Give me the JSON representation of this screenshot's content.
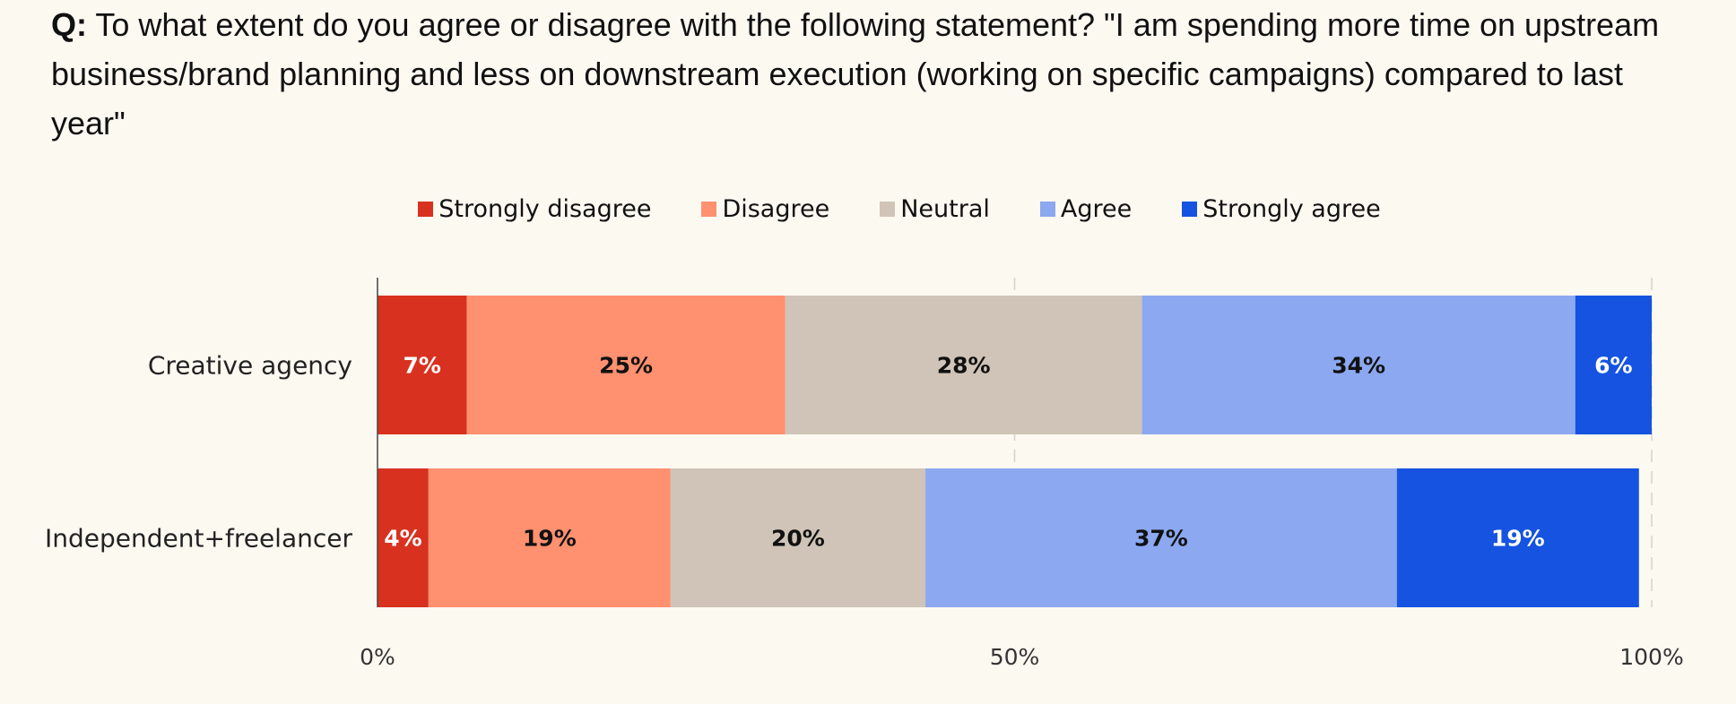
{
  "question": {
    "prefix": "Q:",
    "text": " To what extent do you agree or disagree with the following statement? \"I am spending more time on upstream business/brand planning and less on downstream execution (working on specific campaigns) compared to last year\""
  },
  "colors": {
    "background": "#fcf9f1",
    "strongly_disagree": "#d9311f",
    "disagree": "#ff9070",
    "neutral": "#cfc4b7",
    "agree": "#8ba8f0",
    "strongly_agree": "#1553e0"
  },
  "chart_data": {
    "type": "bar",
    "orientation": "horizontal",
    "stacked": true,
    "title": "",
    "xlabel": "",
    "ylabel": "",
    "xlim": [
      0,
      100
    ],
    "x_ticks": [
      "0%",
      "50%",
      "100%"
    ],
    "legend_position": "top-center",
    "categories": [
      "Creative agency",
      "Independent+freelancer"
    ],
    "series": [
      {
        "name": "Strongly disagree",
        "color": "#d9311f",
        "label_color": "#ffffff",
        "values": [
          7,
          4
        ],
        "labels": [
          "7%",
          "4%"
        ]
      },
      {
        "name": "Disagree",
        "color": "#ff9070",
        "label_color": "#111111",
        "values": [
          25,
          19
        ],
        "labels": [
          "25%",
          "19%"
        ]
      },
      {
        "name": "Neutral",
        "color": "#cfc4b7",
        "label_color": "#111111",
        "values": [
          28,
          20
        ],
        "labels": [
          "28%",
          "20%"
        ]
      },
      {
        "name": "Agree",
        "color": "#8ba8f0",
        "label_color": "#111111",
        "values": [
          34,
          37
        ],
        "labels": [
          "34%",
          "37%"
        ]
      },
      {
        "name": "Strongly agree",
        "color": "#1553e0",
        "label_color": "#ffffff",
        "values": [
          6,
          19
        ],
        "labels": [
          "6%",
          "19%"
        ]
      }
    ]
  }
}
